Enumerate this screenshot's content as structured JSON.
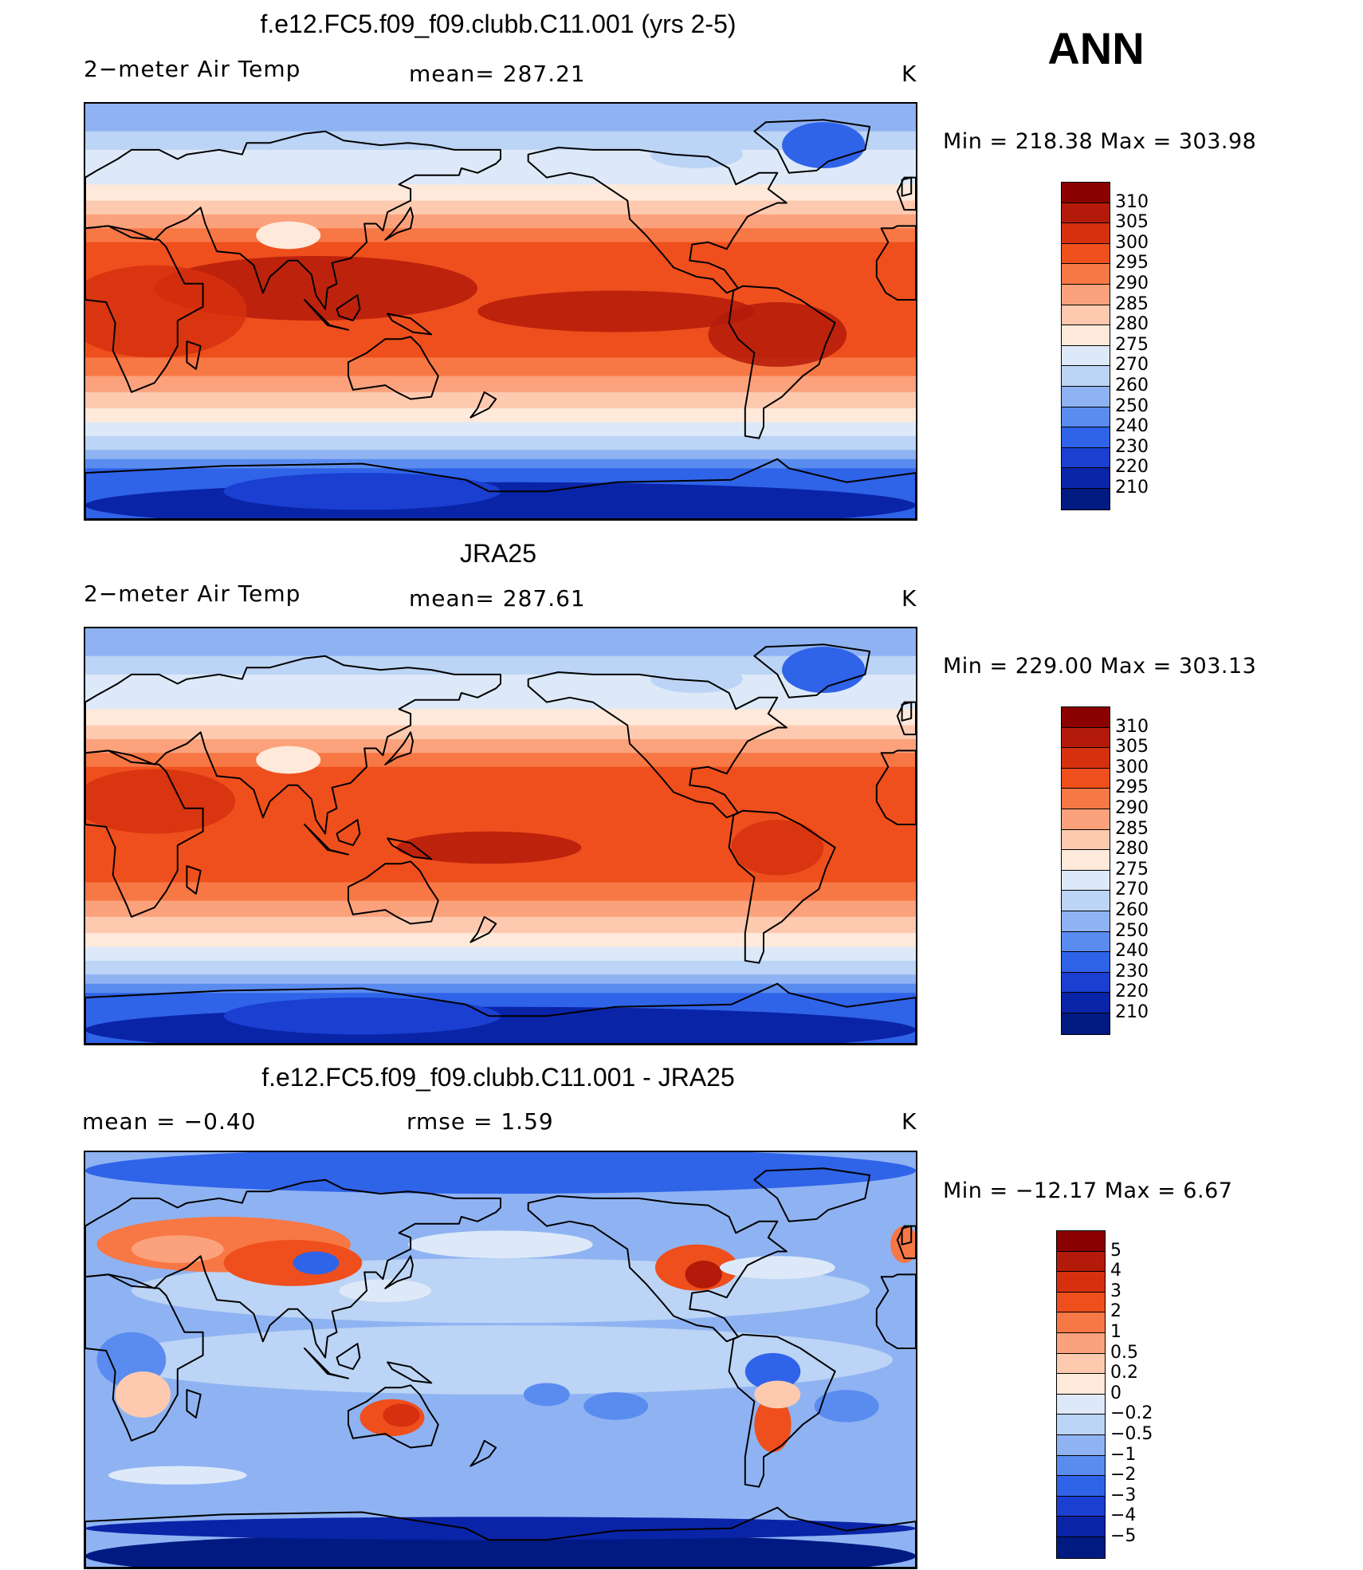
{
  "season": "ANN",
  "panels": [
    {
      "id": "model",
      "title": "f.e12.FC5.f09_f09.clubb.C11.001 (yrs 2-5)",
      "left_label": "2−meter Air Temp",
      "center_label": "mean= 287.21",
      "unit": "K",
      "minmax": "Min  =  218.38  Max  =  303.98",
      "field": "absolute",
      "levels": [
        "310",
        "305",
        "300",
        "295",
        "290",
        "285",
        "280",
        "275",
        "270",
        "260",
        "250",
        "240",
        "230",
        "220",
        "210"
      ],
      "colors": [
        "#8b0000",
        "#b41a0a",
        "#d6300f",
        "#ef4f1c",
        "#f77745",
        "#fba27c",
        "#fdcab0",
        "#fee9da",
        "#dde9f8",
        "#bcd4f5",
        "#8fb3f2",
        "#5a8cf0",
        "#2f63e8",
        "#1a3fd1",
        "#0a24a8",
        "#001a82"
      ]
    },
    {
      "id": "obs",
      "title": "JRA25",
      "left_label": "2−meter Air Temp",
      "center_label": "mean= 287.61",
      "unit": "K",
      "minmax": "Min  =  229.00  Max  =  303.13",
      "field": "absolute",
      "levels": [
        "310",
        "305",
        "300",
        "295",
        "290",
        "285",
        "280",
        "275",
        "270",
        "260",
        "250",
        "240",
        "230",
        "220",
        "210"
      ],
      "colors": [
        "#8b0000",
        "#b41a0a",
        "#d6300f",
        "#ef4f1c",
        "#f77745",
        "#fba27c",
        "#fdcab0",
        "#fee9da",
        "#dde9f8",
        "#bcd4f5",
        "#8fb3f2",
        "#5a8cf0",
        "#2f63e8",
        "#1a3fd1",
        "#0a24a8",
        "#001a82"
      ]
    },
    {
      "id": "diff",
      "title": "f.e12.FC5.f09_f09.clubb.C11.001 - JRA25",
      "left_label": "mean  =     −0.40",
      "center_label": "rmse  =      1.59",
      "unit": "K",
      "minmax": "Min  =  −12.17  Max  =       6.67",
      "field": "difference",
      "levels": [
        "5",
        "4",
        "3",
        "2",
        "1",
        "0.5",
        "0.2",
        "0",
        "−0.2",
        "−0.5",
        "−1",
        "−2",
        "−3",
        "−4",
        "−5"
      ],
      "colors": [
        "#8b0000",
        "#b41a0a",
        "#d6300f",
        "#ef4f1c",
        "#f77745",
        "#fba27c",
        "#fdcab0",
        "#fee9da",
        "#dde9f8",
        "#bcd4f5",
        "#8fb3f2",
        "#5a8cf0",
        "#2f63e8",
        "#1a3fd1",
        "#0a24a8",
        "#001a82"
      ]
    }
  ]
}
